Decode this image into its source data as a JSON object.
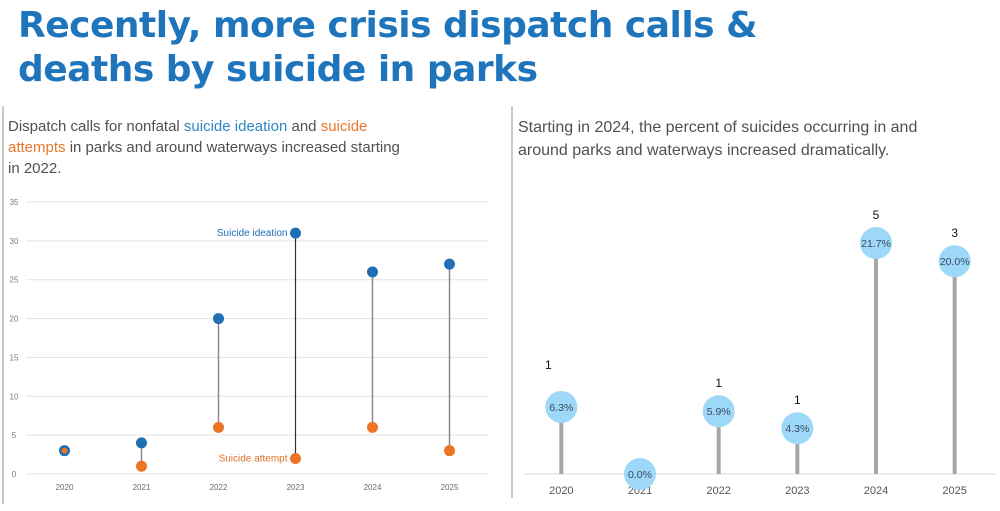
{
  "title": {
    "line1": "Recently, more crisis dispatch calls &",
    "line2": "deaths by suicide in parks"
  },
  "left_caption": {
    "part1": "Dispatch calls for nonfatal ",
    "ideation": "suicide ideation",
    "part2": " and ",
    "attempts": "suicide attempts",
    "part3": " in parks and around waterways increased starting in 2022."
  },
  "right_caption": "Starting in 2024, the percent of suicides occurring in and around parks and waterways increased dramatically.",
  "colors": {
    "ideation": "#1f6fb5",
    "attempt": "#ec7425",
    "bubble": "#9dd8f8",
    "stem": "#a6a6a6",
    "grid": "#e3e3e3"
  },
  "chart_data": [
    {
      "type": "scatter",
      "subtype": "dumbbell",
      "title": "",
      "xlabel": "",
      "ylabel": "",
      "categories": [
        "2020",
        "2021",
        "2022",
        "2023",
        "2024",
        "2025"
      ],
      "series": [
        {
          "name": "Suicide ideation",
          "values": [
            3,
            4,
            20,
            31,
            26,
            27
          ]
        },
        {
          "name": "Suicide attempt",
          "values": [
            3,
            1,
            6,
            2,
            6,
            3
          ]
        }
      ],
      "ylim": [
        0,
        35
      ],
      "yticks": [
        0,
        5,
        10,
        15,
        20,
        25,
        30,
        35
      ],
      "grid": true,
      "annotations": [
        {
          "text": "Suicide ideation",
          "series": "Suicide ideation",
          "category": "2023"
        },
        {
          "text": "Suicide attempt",
          "series": "Suicide attempt",
          "category": "2023"
        }
      ]
    },
    {
      "type": "scatter",
      "subtype": "lollipop",
      "title": "",
      "xlabel": "",
      "ylabel": "",
      "categories": [
        "2020",
        "2021",
        "2022",
        "2023",
        "2024",
        "2025"
      ],
      "values": [
        6.3,
        0.0,
        5.9,
        4.3,
        21.7,
        20.0
      ],
      "value_labels": [
        "6.3%",
        "0.0%",
        "5.9%",
        "4.3%",
        "21.7%",
        "20.0%"
      ],
      "count_labels": [
        "1",
        "",
        "1",
        "1",
        "5",
        "3"
      ],
      "ylim": [
        0,
        25
      ],
      "grid": false
    }
  ]
}
